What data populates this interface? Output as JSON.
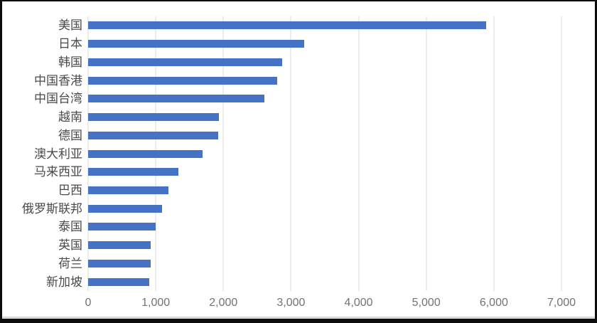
{
  "chart_data": {
    "type": "bar",
    "orientation": "horizontal",
    "title": "",
    "xlabel": "",
    "ylabel": "",
    "categories": [
      "美国",
      "日本",
      "韩国",
      "中国香港",
      "中国台湾",
      "越南",
      "德国",
      "澳大利亚",
      "马来西亚",
      "巴西",
      "俄罗斯联邦",
      "泰国",
      "英国",
      "荷兰",
      "新加坡"
    ],
    "values": [
      5890,
      3200,
      2870,
      2800,
      2610,
      1930,
      1920,
      1690,
      1330,
      1190,
      1090,
      1000,
      930,
      920,
      900
    ],
    "xlim": [
      0,
      7000
    ],
    "x_ticks": [
      "0",
      "1,000",
      "2,000",
      "3,000",
      "4,000",
      "5,000",
      "6,000",
      "7,000"
    ],
    "x_tick_values": [
      0,
      1000,
      2000,
      3000,
      4000,
      5000,
      6000,
      7000
    ],
    "grid": true,
    "legend": false,
    "colors": {
      "bar": "#4472C4",
      "gridline": "#D9D9D9",
      "tick_label": "#737373",
      "category_label": "#4A4A4A",
      "background": "#FFFFFF",
      "frame_border": "#0C0C0C"
    }
  }
}
